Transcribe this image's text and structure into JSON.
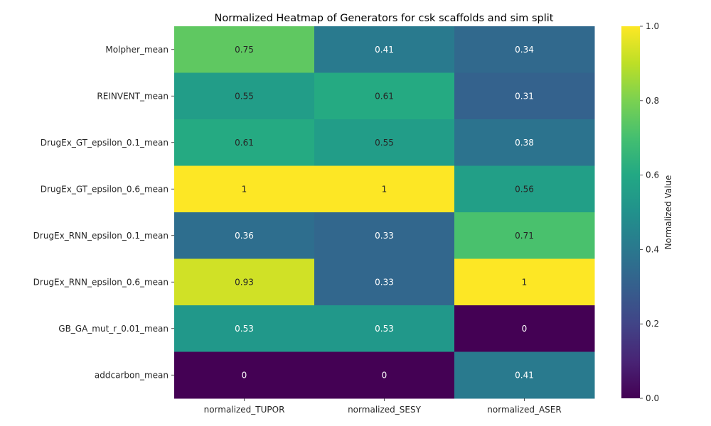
{
  "chart_data": {
    "type": "heatmap",
    "title": "Normalized Heatmap of Generators for csk scaffolds and sim split",
    "xlabel": "",
    "ylabel": "",
    "x_categories": [
      "normalized_TUPOR",
      "normalized_SESY",
      "normalized_ASER"
    ],
    "y_categories": [
      "Molpher_mean",
      "REINVENT_mean",
      "DrugEx_GT_epsilon_0.1_mean",
      "DrugEx_GT_epsilon_0.6_mean",
      "DrugEx_RNN_epsilon_0.1_mean",
      "DrugEx_RNN_epsilon_0.6_mean",
      "GB_GA_mut_r_0.01_mean",
      "addcarbon_mean"
    ],
    "values": [
      [
        0.75,
        0.41,
        0.34
      ],
      [
        0.55,
        0.61,
        0.31
      ],
      [
        0.61,
        0.55,
        0.38
      ],
      [
        1,
        1,
        0.56
      ],
      [
        0.36,
        0.33,
        0.71
      ],
      [
        0.93,
        0.33,
        1
      ],
      [
        0.53,
        0.53,
        0
      ],
      [
        0,
        0,
        0.41
      ]
    ],
    "value_labels": [
      [
        "0.75",
        "0.41",
        "0.34"
      ],
      [
        "0.55",
        "0.61",
        "0.31"
      ],
      [
        "0.61",
        "0.55",
        "0.38"
      ],
      [
        "1",
        "1",
        "0.56"
      ],
      [
        "0.36",
        "0.33",
        "0.71"
      ],
      [
        "0.93",
        "0.33",
        "1"
      ],
      [
        "0.53",
        "0.53",
        "0"
      ],
      [
        "0",
        "0",
        "0.41"
      ]
    ],
    "colormap": "viridis",
    "value_range": [
      0,
      1
    ],
    "colorbar": {
      "label": "Normalized Value",
      "ticks": [
        0.0,
        0.2,
        0.4,
        0.6,
        0.8,
        1.0
      ],
      "tick_labels": [
        "0.0",
        "0.2",
        "0.4",
        "0.6",
        "0.8",
        "1.0"
      ]
    }
  }
}
